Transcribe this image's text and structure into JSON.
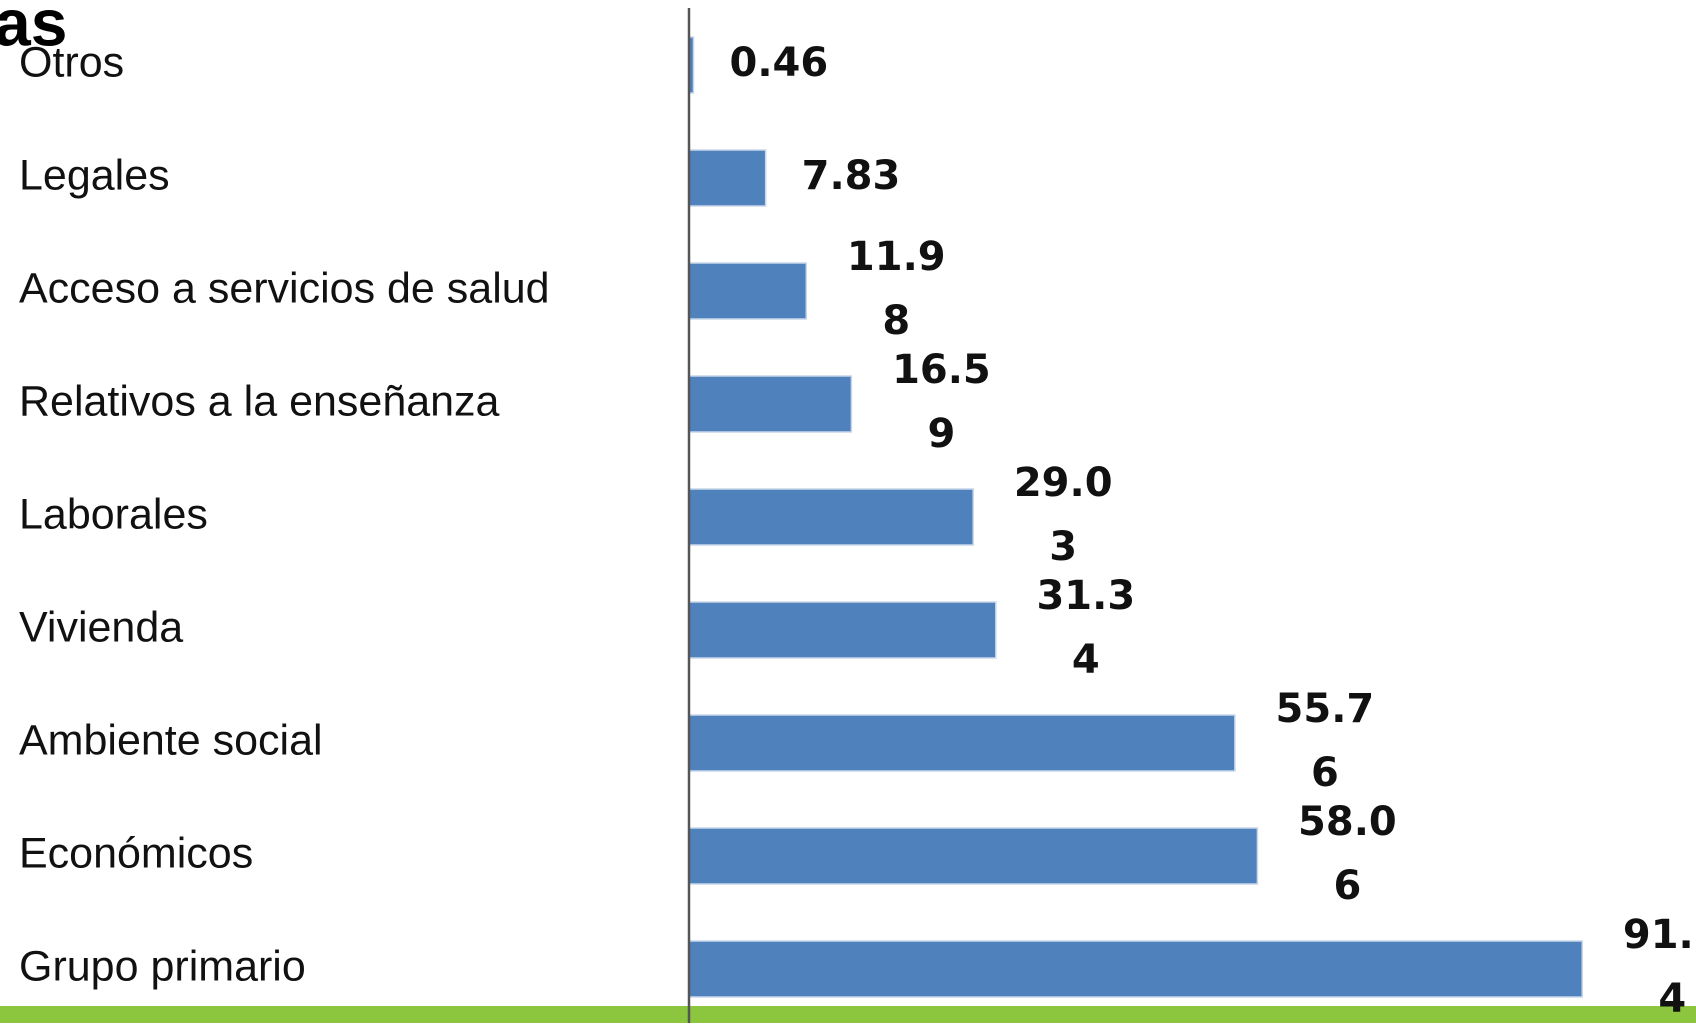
{
  "chart_data": {
    "type": "barh",
    "title": "as",
    "categories": [
      "Otros",
      "Legales",
      "Acceso a servicios de salud",
      "Relativos a la enseñanza",
      "Laborales",
      "Vivienda",
      "Ambiente social",
      "Económicos",
      "Grupo primario"
    ],
    "values": [
      0.46,
      7.83,
      11.98,
      16.59,
      29.03,
      31.34,
      55.76,
      58.06,
      91.24
    ],
    "color": "#4f81bd",
    "xlim": [
      0,
      100
    ]
  }
}
